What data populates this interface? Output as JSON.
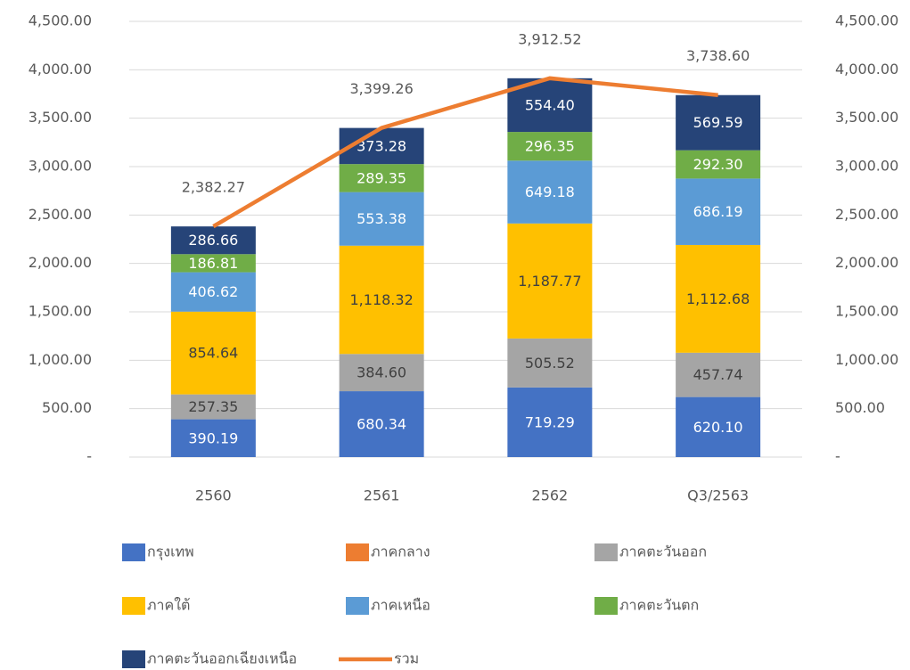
{
  "chart_data": {
    "type": "stacked_bar_line",
    "categories": [
      "2560",
      "2561",
      "2562",
      "Q3/2563"
    ],
    "ylim": [
      0,
      4500
    ],
    "yticks": [
      {
        "value": 0,
        "label": "-"
      },
      {
        "value": 500,
        "label": "500.00"
      },
      {
        "value": 1000,
        "label": "1,000.00"
      },
      {
        "value": 1500,
        "label": "1,500.00"
      },
      {
        "value": 2000,
        "label": "2,000.00"
      },
      {
        "value": 2500,
        "label": "2,500.00"
      },
      {
        "value": 3000,
        "label": "3,000.00"
      },
      {
        "value": 3500,
        "label": "3,500.00"
      },
      {
        "value": 4000,
        "label": "4,000.00"
      },
      {
        "value": 4500,
        "label": "4,500.00"
      }
    ],
    "y2lim": [
      0,
      4500
    ],
    "y2ticks": [
      {
        "value": 0,
        "label": "-"
      },
      {
        "value": 500,
        "label": "500.00"
      },
      {
        "value": 1000,
        "label": "1,000.00"
      },
      {
        "value": 1500,
        "label": "1,500.00"
      },
      {
        "value": 2000,
        "label": "2,000.00"
      },
      {
        "value": 2500,
        "label": "2,500.00"
      },
      {
        "value": 3000,
        "label": "3,000.00"
      },
      {
        "value": 3500,
        "label": "3,500.00"
      },
      {
        "value": 4000,
        "label": "4,000.00"
      },
      {
        "value": 4500,
        "label": "4,500.00"
      }
    ],
    "grid": true,
    "legend": "bottom",
    "series": [
      {
        "name": "กรุงเทพ",
        "color": "#4472c4",
        "values": [
          390.19,
          680.34,
          719.29,
          620.1
        ],
        "value_labels": [
          "390.19",
          "680.34",
          "719.29",
          "620.10"
        ]
      },
      {
        "name": "ภาคกลาง",
        "color": "#ed7d31",
        "values": [
          null,
          null,
          null,
          null
        ]
      },
      {
        "name": "ภาคตะวันออก",
        "color": "#a5a5a5",
        "values": [
          257.35,
          384.6,
          505.52,
          457.74
        ],
        "value_labels": [
          "257.35",
          "384.60",
          "505.52",
          "457.74"
        ]
      },
      {
        "name": "ภาคใต้",
        "color": "#ffc000",
        "values": [
          854.64,
          1118.32,
          1187.77,
          1112.68
        ],
        "value_labels": [
          "854.64",
          "1,118.32",
          "1,187.77",
          "1,112.68"
        ]
      },
      {
        "name": "ภาคเหนือ",
        "color": "#5b9bd5",
        "values": [
          406.62,
          553.38,
          649.18,
          686.19
        ],
        "value_labels": [
          "406.62",
          "553.38",
          "649.18",
          "686.19"
        ]
      },
      {
        "name": "ภาคตะวันตก",
        "color": "#70ad47",
        "values": [
          186.81,
          289.35,
          296.35,
          292.3
        ],
        "value_labels": [
          "186.81",
          "289.35",
          "296.35",
          "292.30"
        ]
      },
      {
        "name": "ภาคตะวันออกเฉียงเหนือ",
        "color": "#264478",
        "values": [
          286.66,
          373.28,
          554.4,
          569.59
        ],
        "value_labels": [
          "286.66",
          "373.28",
          "554.40",
          "569.59"
        ]
      },
      {
        "name": "รวม",
        "type": "line",
        "color": "#ed7d31",
        "values": [
          2382.27,
          3399.26,
          3912.52,
          3738.6
        ],
        "value_labels": [
          "2,382.27",
          "3,399.26",
          "3,912.52",
          "3,738.60"
        ]
      }
    ]
  }
}
